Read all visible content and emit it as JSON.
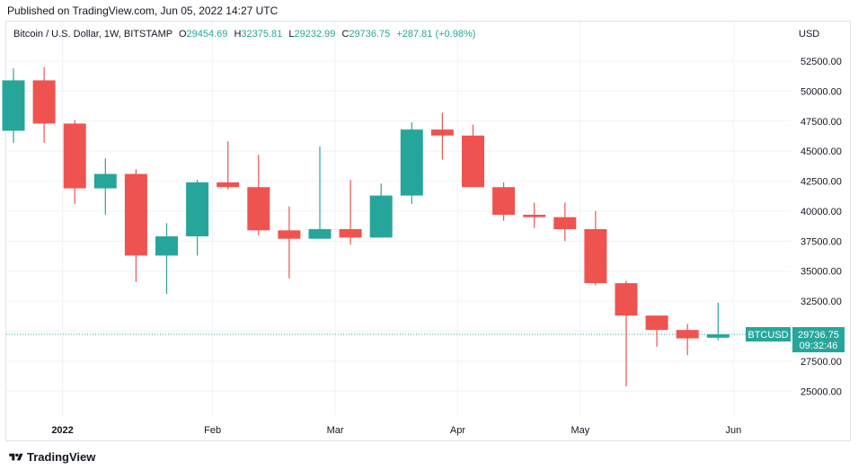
{
  "published": "Published on TradingView.com, Jun 05, 2022 14:27 UTC",
  "legend": {
    "symbol": "Bitcoin / U.S. Dollar, 1W, BITSTAMP",
    "open_label": "O",
    "open": "29454.69",
    "high_label": "H",
    "high": "32375.81",
    "low_label": "L",
    "low": "29232.99",
    "close_label": "C",
    "close": "29736.75",
    "change": "+287.81 (+0.98%)"
  },
  "currency": "USD",
  "footer": {
    "brand": "TradingView",
    "logo_icon": "tradingview-logo-icon"
  },
  "price_tag": {
    "symbol": "BTCUSD",
    "price": "29736.75",
    "countdown": "09:32:46"
  },
  "colors": {
    "up": "#26a69a",
    "down": "#ef5350",
    "grid": "#f0f3fa",
    "axis_text": "#131722",
    "tag_bg": "#26a69a"
  },
  "chart_data": {
    "type": "candlestick",
    "interval": "1W",
    "ylim": [
      23000,
      54000
    ],
    "yticks": [
      25000,
      27500,
      30000,
      32500,
      35000,
      37500,
      40000,
      42500,
      45000,
      47500,
      50000,
      52500
    ],
    "ytick_labels": [
      "25000.00",
      "27500.00",
      "30000.00",
      "32500.00",
      "35000.00",
      "37500.00",
      "40000.00",
      "42500.00",
      "45000.00",
      "47500.00",
      "50000.00",
      "52500.00"
    ],
    "xtick_labels": [
      {
        "label": "2022",
        "index": 1.6
      },
      {
        "label": "Feb",
        "index": 6.5
      },
      {
        "label": "Mar",
        "index": 10.5
      },
      {
        "label": "Apr",
        "index": 14.5
      },
      {
        "label": "May",
        "index": 18.5
      },
      {
        "label": "Jun",
        "index": 23.5
      }
    ],
    "last_price": 29736.75,
    "candles": [
      {
        "o": 46700,
        "h": 51900,
        "l": 45700,
        "c": 50900
      },
      {
        "o": 50900,
        "h": 52000,
        "l": 45700,
        "c": 47300
      },
      {
        "o": 47300,
        "h": 47600,
        "l": 40600,
        "c": 41900
      },
      {
        "o": 41900,
        "h": 44400,
        "l": 39700,
        "c": 43100
      },
      {
        "o": 43100,
        "h": 43500,
        "l": 34100,
        "c": 36300
      },
      {
        "o": 36300,
        "h": 39000,
        "l": 33100,
        "c": 37900
      },
      {
        "o": 37900,
        "h": 42600,
        "l": 36300,
        "c": 42400
      },
      {
        "o": 42400,
        "h": 45800,
        "l": 41800,
        "c": 42000
      },
      {
        "o": 42000,
        "h": 44700,
        "l": 38000,
        "c": 38400
      },
      {
        "o": 38400,
        "h": 40400,
        "l": 34400,
        "c": 37700
      },
      {
        "o": 37700,
        "h": 45400,
        "l": 37700,
        "c": 38500
      },
      {
        "o": 38500,
        "h": 42600,
        "l": 37200,
        "c": 37800
      },
      {
        "o": 37800,
        "h": 42300,
        "l": 37800,
        "c": 41300
      },
      {
        "o": 41300,
        "h": 47400,
        "l": 40600,
        "c": 46800
      },
      {
        "o": 46800,
        "h": 48200,
        "l": 44300,
        "c": 46300
      },
      {
        "o": 46300,
        "h": 47200,
        "l": 42100,
        "c": 42000
      },
      {
        "o": 42000,
        "h": 42400,
        "l": 39200,
        "c": 39700
      },
      {
        "o": 39700,
        "h": 40700,
        "l": 38600,
        "c": 39500
      },
      {
        "o": 39500,
        "h": 40700,
        "l": 37500,
        "c": 38500
      },
      {
        "o": 38500,
        "h": 40000,
        "l": 33800,
        "c": 34000
      },
      {
        "o": 34000,
        "h": 34200,
        "l": 25400,
        "c": 31300
      },
      {
        "o": 31300,
        "h": 31300,
        "l": 28700,
        "c": 30100
      },
      {
        "o": 30100,
        "h": 30600,
        "l": 28000,
        "c": 29400
      },
      {
        "o": 29455,
        "h": 32376,
        "l": 29233,
        "c": 29737
      }
    ]
  }
}
